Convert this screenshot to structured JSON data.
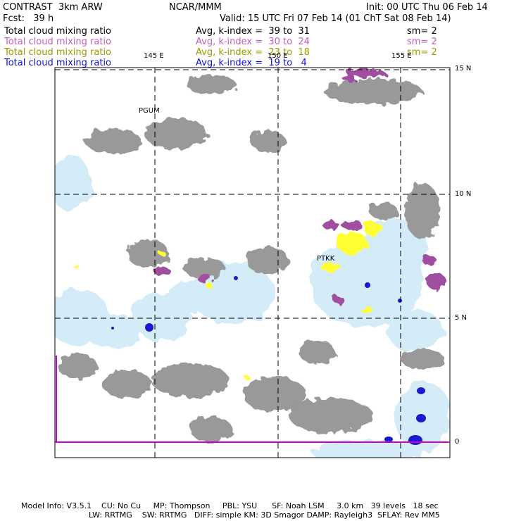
{
  "header": {
    "model_name": "CONTRAST  3km ARW",
    "center": "NCAR/MMM",
    "init": "Init: 00 UTC Thu 06 Feb 14",
    "forecast": "Fcst:   39 h",
    "valid": "Valid: 15 UTC Fri 07 Feb 14 (01 ChT Sat 08 Feb 14)"
  },
  "fields": [
    {
      "name": "Total cloud mixing ratio",
      "stats": "Avg, k-index =  39 to  31",
      "smooth": "sm= 2",
      "color": "#000000"
    },
    {
      "name": "Total cloud mixing ratio",
      "stats": "Avg, k-index =  30 to  24",
      "smooth": "sm= 2",
      "color": "#c060c0"
    },
    {
      "name": "Total cloud mixing ratio",
      "stats": "Avg, k-index =  23 to  18",
      "smooth": "sm= 2",
      "color": "#9a9a00"
    },
    {
      "name": "Total cloud mixing ratio",
      "stats": "Avg, k-index =  19 to   4",
      "smooth": "",
      "color": "#1010e0"
    }
  ],
  "map": {
    "lon_labels": [
      "145 E",
      "150 E",
      "155 E"
    ],
    "lat_labels": [
      "15 N",
      "10 N",
      "5 N",
      "0"
    ],
    "stations": [
      "PGUM",
      "PTKK"
    ],
    "colors": {
      "gray": "#999999",
      "magenta": "#a050a0",
      "yellow": "#ffff33",
      "lightblue": "#d4ecf8",
      "blue": "#1a1ad0",
      "boundary": "#cc00cc"
    }
  },
  "footer": {
    "line1": "Model Info: V3.5.1    CU: No Cu     MP: Thompson     PBL: YSU      SF: Noah LSM     3.0 km   39 levels   18 sec",
    "line2": "LW: RRTMG    SW: RRTMG   DIFF: simple KM: 3D Smagor DAMP: Rayleigh3  SFLAY: Rev MM5"
  }
}
